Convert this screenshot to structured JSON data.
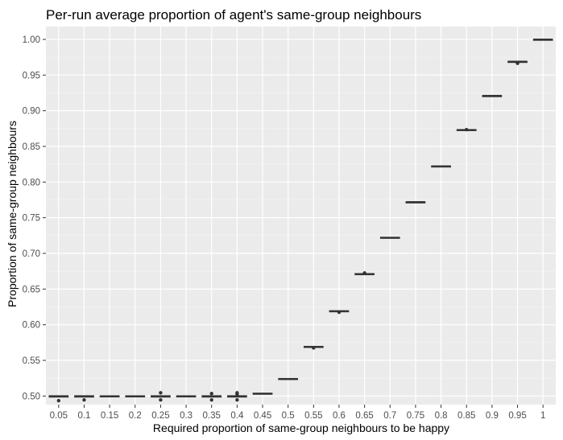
{
  "chart_data": {
    "type": "boxplot",
    "title": "Per-run average proportion of agent's same-group neighbours",
    "xlabel": "Required proportion of same-group neighbours to be happy",
    "ylabel": "Proportion of same-group neighbours",
    "categories": [
      "0.05",
      "0.1",
      "0.15",
      "0.2",
      "0.25",
      "0.3",
      "0.35",
      "0.4",
      "0.45",
      "0.5",
      "0.55",
      "0.6",
      "0.65",
      "0.7",
      "0.75",
      "0.8",
      "0.85",
      "0.9",
      "0.95",
      "1"
    ],
    "yticks": [
      "0.50",
      "0.55",
      "0.60",
      "0.65",
      "0.70",
      "0.75",
      "0.80",
      "0.85",
      "0.90",
      "0.95",
      "1.00"
    ],
    "ylim": [
      0.488,
      1.018
    ],
    "grid": true,
    "background": "#ebebeb",
    "box_color": "#333333",
    "boxes": [
      {
        "q1": 0.4985,
        "median": 0.4995,
        "q3": 0.5005,
        "outliers": [
          0.4935
        ]
      },
      {
        "q1": 0.4985,
        "median": 0.4995,
        "q3": 0.5005,
        "outliers": [
          0.4945
        ]
      },
      {
        "q1": 0.4988,
        "median": 0.4996,
        "q3": 0.5004,
        "outliers": []
      },
      {
        "q1": 0.4988,
        "median": 0.4996,
        "q3": 0.5004,
        "outliers": []
      },
      {
        "q1": 0.4985,
        "median": 0.4995,
        "q3": 0.5005,
        "outliers": [
          0.5045,
          0.4945
        ]
      },
      {
        "q1": 0.4988,
        "median": 0.4996,
        "q3": 0.5004,
        "outliers": []
      },
      {
        "q1": 0.4985,
        "median": 0.4995,
        "q3": 0.5005,
        "outliers": [
          0.5035,
          0.4945
        ]
      },
      {
        "q1": 0.4985,
        "median": 0.4995,
        "q3": 0.5005,
        "outliers": [
          0.5045,
          0.5025,
          0.4945
        ]
      },
      {
        "q1": 0.5025,
        "median": 0.5033,
        "q3": 0.5041,
        "outliers": []
      },
      {
        "q1": 0.5233,
        "median": 0.524,
        "q3": 0.5247,
        "outliers": []
      },
      {
        "q1": 0.5683,
        "median": 0.569,
        "q3": 0.5697,
        "outliers": [
          0.5675
        ]
      },
      {
        "q1": 0.6183,
        "median": 0.619,
        "q3": 0.6197,
        "outliers": [
          0.6175
        ]
      },
      {
        "q1": 0.6703,
        "median": 0.671,
        "q3": 0.6717,
        "outliers": [
          0.6725
        ]
      },
      {
        "q1": 0.7213,
        "median": 0.722,
        "q3": 0.7227,
        "outliers": []
      },
      {
        "q1": 0.7717,
        "median": 0.772,
        "q3": 0.7723,
        "outliers": []
      },
      {
        "q1": 0.8213,
        "median": 0.822,
        "q3": 0.8227,
        "outliers": []
      },
      {
        "q1": 0.8723,
        "median": 0.873,
        "q3": 0.8737,
        "outliers": [
          0.8735
        ]
      },
      {
        "q1": 0.9207,
        "median": 0.921,
        "q3": 0.9213,
        "outliers": []
      },
      {
        "q1": 0.9687,
        "median": 0.969,
        "q3": 0.9693,
        "outliers": [
          0.9665
        ]
      },
      {
        "q1": 0.9997,
        "median": 1.0,
        "q3": 1.0003,
        "outliers": []
      }
    ]
  }
}
